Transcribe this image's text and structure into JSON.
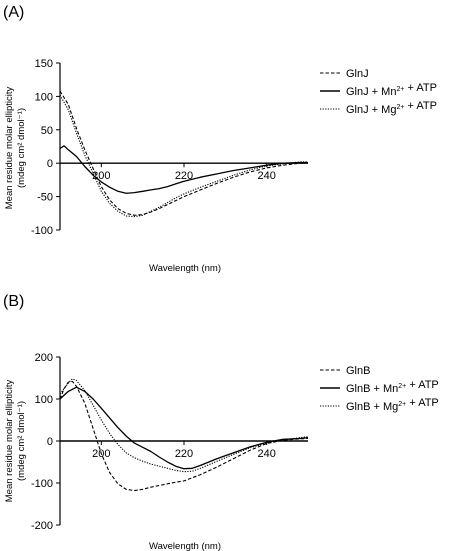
{
  "chart_data": [
    {
      "type": "line",
      "panel_label": "(A)",
      "xlabel": "Wavelength (nm)",
      "ylabel_line1": "Mean residue molar ellipticity",
      "ylabel_line2": "(mdeg cm² dmol⁻¹)",
      "xlim": [
        190,
        250
      ],
      "ylim": [
        -100,
        150
      ],
      "x_ticks": [
        200,
        220,
        240
      ],
      "y_ticks": [
        -100,
        -50,
        0,
        50,
        100,
        150
      ],
      "x_tick_labels": [
        "200",
        "220",
        "240"
      ],
      "y_tick_labels": [
        "-100",
        "-50",
        "0",
        "50",
        "100",
        "150"
      ],
      "legend_position": "right",
      "series": [
        {
          "name": "GlnJ",
          "style": "dashed",
          "points": [
            [
              190,
              108
            ],
            [
              192,
              88
            ],
            [
              194,
              52
            ],
            [
              196,
              20
            ],
            [
              198,
              -8
            ],
            [
              200,
              -35
            ],
            [
              202,
              -55
            ],
            [
              204,
              -68
            ],
            [
              206,
              -75
            ],
            [
              208,
              -78
            ],
            [
              210,
              -77
            ],
            [
              212,
              -73
            ],
            [
              214,
              -68
            ],
            [
              216,
              -62
            ],
            [
              218,
              -56
            ],
            [
              220,
              -50
            ],
            [
              224,
              -40
            ],
            [
              228,
              -30
            ],
            [
              232,
              -21
            ],
            [
              236,
              -13
            ],
            [
              240,
              -7
            ],
            [
              244,
              -3
            ],
            [
              248,
              0
            ],
            [
              250,
              1
            ]
          ]
        },
        {
          "name": "GlnJ + Mn²⁺ + ATP",
          "style": "solid",
          "points": [
            [
              190,
              22
            ],
            [
              191,
              26
            ],
            [
              192,
              20
            ],
            [
              194,
              10
            ],
            [
              196,
              -5
            ],
            [
              198,
              -18
            ],
            [
              200,
              -28
            ],
            [
              202,
              -36
            ],
            [
              204,
              -42
            ],
            [
              206,
              -45
            ],
            [
              208,
              -44
            ],
            [
              210,
              -42
            ],
            [
              212,
              -40
            ],
            [
              214,
              -38
            ],
            [
              216,
              -35
            ],
            [
              218,
              -31
            ],
            [
              220,
              -27
            ],
            [
              224,
              -21
            ],
            [
              228,
              -16
            ],
            [
              232,
              -11
            ],
            [
              236,
              -7
            ],
            [
              240,
              -3
            ],
            [
              244,
              0
            ],
            [
              248,
              1
            ],
            [
              250,
              1
            ]
          ]
        },
        {
          "name": "GlnJ + Mg²⁺ + ATP",
          "style": "dotted",
          "points": [
            [
              190,
              102
            ],
            [
              192,
              80
            ],
            [
              194,
              45
            ],
            [
              196,
              12
            ],
            [
              198,
              -15
            ],
            [
              200,
              -42
            ],
            [
              202,
              -60
            ],
            [
              204,
              -72
            ],
            [
              206,
              -79
            ],
            [
              208,
              -80
            ],
            [
              210,
              -78
            ],
            [
              212,
              -72
            ],
            [
              214,
              -66
            ],
            [
              216,
              -59
            ],
            [
              218,
              -52
            ],
            [
              220,
              -46
            ],
            [
              224,
              -36
            ],
            [
              228,
              -27
            ],
            [
              232,
              -18
            ],
            [
              236,
              -10
            ],
            [
              240,
              -4
            ],
            [
              244,
              -1
            ],
            [
              248,
              2
            ],
            [
              250,
              2
            ]
          ]
        }
      ]
    },
    {
      "type": "line",
      "panel_label": "(B)",
      "xlabel": "Wavelength (nm)",
      "ylabel_line1": "Mean residue molar ellipticity",
      "ylabel_line2": "(mdeg cm² dmol⁻¹)",
      "xlim": [
        190,
        250
      ],
      "ylim": [
        -200,
        200
      ],
      "x_ticks": [
        200,
        220,
        240
      ],
      "y_ticks": [
        -200,
        -100,
        0,
        100,
        200
      ],
      "x_tick_labels": [
        "200",
        "220",
        "240"
      ],
      "y_tick_labels": [
        "-200",
        "-100",
        "0",
        "100",
        "200"
      ],
      "legend_position": "right",
      "series": [
        {
          "name": "GlnB",
          "style": "dashed",
          "points": [
            [
              190,
              100
            ],
            [
              191,
              125
            ],
            [
              192,
              140
            ],
            [
              193,
              142
            ],
            [
              194,
              130
            ],
            [
              196,
              90
            ],
            [
              198,
              30
            ],
            [
              200,
              -30
            ],
            [
              202,
              -75
            ],
            [
              204,
              -102
            ],
            [
              206,
              -115
            ],
            [
              208,
              -118
            ],
            [
              210,
              -115
            ],
            [
              212,
              -110
            ],
            [
              214,
              -106
            ],
            [
              216,
              -102
            ],
            [
              218,
              -98
            ],
            [
              220,
              -95
            ],
            [
              224,
              -80
            ],
            [
              228,
              -62
            ],
            [
              232,
              -42
            ],
            [
              236,
              -22
            ],
            [
              240,
              -6
            ],
            [
              244,
              2
            ],
            [
              248,
              5
            ],
            [
              250,
              6
            ]
          ]
        },
        {
          "name": "GlnB + Mn²⁺ + ATP",
          "style": "solid",
          "points": [
            [
              190,
              100
            ],
            [
              192,
              118
            ],
            [
              194,
              128
            ],
            [
              196,
              118
            ],
            [
              198,
              100
            ],
            [
              200,
              78
            ],
            [
              202,
              55
            ],
            [
              204,
              32
            ],
            [
              206,
              12
            ],
            [
              208,
              -5
            ],
            [
              210,
              -15
            ],
            [
              212,
              -25
            ],
            [
              214,
              -38
            ],
            [
              216,
              -50
            ],
            [
              218,
              -60
            ],
            [
              220,
              -66
            ],
            [
              222,
              -65
            ],
            [
              224,
              -58
            ],
            [
              228,
              -42
            ],
            [
              232,
              -28
            ],
            [
              236,
              -14
            ],
            [
              240,
              -3
            ],
            [
              244,
              4
            ],
            [
              248,
              6
            ],
            [
              250,
              8
            ]
          ]
        },
        {
          "name": "GlnB + Mg²⁺ + ATP",
          "style": "dotted",
          "points": [
            [
              190,
              112
            ],
            [
              192,
              138
            ],
            [
              193,
              148
            ],
            [
              194,
              144
            ],
            [
              196,
              120
            ],
            [
              198,
              85
            ],
            [
              200,
              50
            ],
            [
              202,
              18
            ],
            [
              204,
              -8
            ],
            [
              206,
              -28
            ],
            [
              208,
              -40
            ],
            [
              210,
              -48
            ],
            [
              212,
              -55
            ],
            [
              214,
              -60
            ],
            [
              216,
              -65
            ],
            [
              218,
              -70
            ],
            [
              220,
              -73
            ],
            [
              222,
              -72
            ],
            [
              224,
              -65
            ],
            [
              228,
              -48
            ],
            [
              232,
              -32
            ],
            [
              236,
              -16
            ],
            [
              240,
              -5
            ],
            [
              244,
              2
            ],
            [
              248,
              8
            ],
            [
              250,
              10
            ]
          ]
        }
      ]
    }
  ]
}
